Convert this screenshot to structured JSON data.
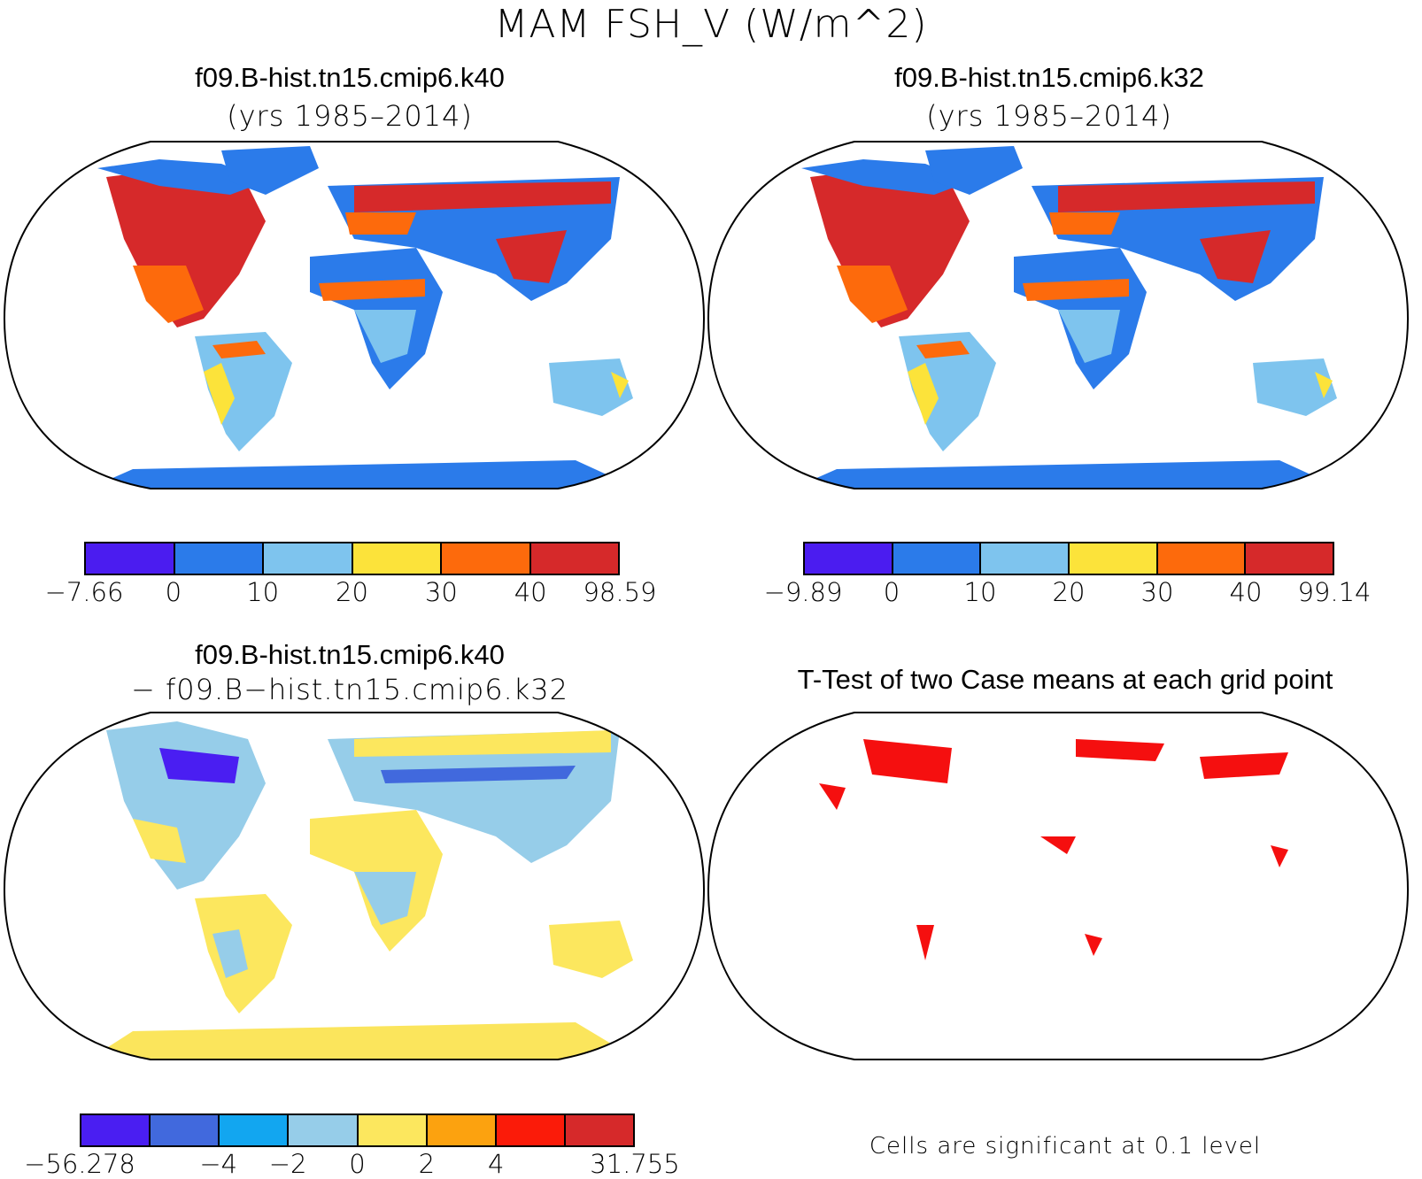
{
  "figure": {
    "title": "MAM FSH_V (W/m^2)"
  },
  "panels": [
    {
      "id": "case1",
      "title": "f09.B-hist.tn15.cmip6.k40",
      "subtitle": "(yrs 1985–2014)",
      "colorbar": {
        "colors": [
          "#4b1cf0",
          "#2b7bea",
          "#7ec4ee",
          "#fce33a",
          "#fd6a0c",
          "#d6292a"
        ],
        "labels": [
          "−7.66",
          "0",
          "10",
          "20",
          "30",
          "40",
          "98.59"
        ]
      }
    },
    {
      "id": "case2",
      "title": "f09.B-hist.tn15.cmip6.k32",
      "subtitle": "(yrs 1985–2014)",
      "colorbar": {
        "colors": [
          "#4b1cf0",
          "#2b7bea",
          "#7ec4ee",
          "#fce33a",
          "#fd6a0c",
          "#d6292a"
        ],
        "labels": [
          "−9.89",
          "0",
          "10",
          "20",
          "30",
          "40",
          "99.14"
        ]
      }
    },
    {
      "id": "difference",
      "title": "f09.B-hist.tn15.cmip6.k40",
      "subtitle": "− f09.B−hist.tn15.cmip6.k32",
      "colorbar": {
        "colors": [
          "#4a1ef2",
          "#4169dd",
          "#12a6f0",
          "#96cde9",
          "#fce75e",
          "#fca20f",
          "#fb1b09",
          "#d6292a"
        ],
        "labels": [
          "−56.278",
          "",
          "−4",
          "−2",
          "0",
          "2",
          "4",
          "",
          "31.755"
        ]
      }
    },
    {
      "id": "ttest",
      "title": "T-Test of two Case means at each grid point",
      "note": "Cells are significant at 0.1 level",
      "significant_color": "#f50f0f"
    }
  ],
  "map": {
    "projection": "Robinson",
    "land_color": "#2e7ae8",
    "land_color_diff": "#9fcdea",
    "antarctica_color_diff": "#fbe55c"
  }
}
